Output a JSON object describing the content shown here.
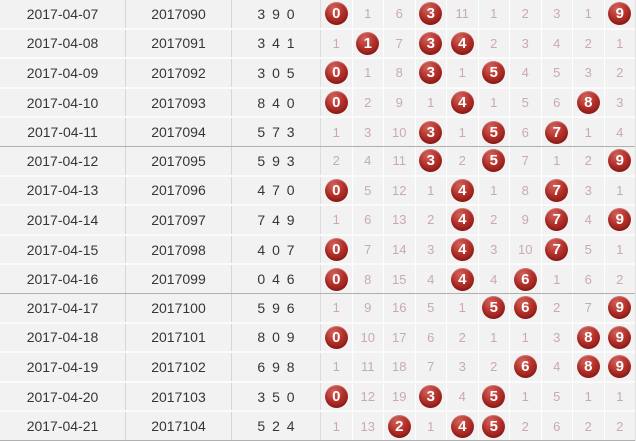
{
  "colors": {
    "ball": "#b22e28",
    "miss_text": "#c9abab",
    "row_text": "#34363b",
    "row_bg": "#f2f2f2",
    "group_border": "#b0b0b0"
  },
  "table": {
    "group_size": 5,
    "digit_columns": [
      0,
      1,
      2,
      3,
      4,
      5,
      6,
      7,
      8,
      9
    ],
    "rows": [
      {
        "date": "2017-04-07",
        "issue": "2017090",
        "numbers": "3 9 0",
        "trend": [
          {
            "ball": 0
          },
          {
            "miss": 1
          },
          {
            "miss": 6
          },
          {
            "ball": 3
          },
          {
            "miss": 11
          },
          {
            "miss": 1
          },
          {
            "miss": 2
          },
          {
            "miss": 3
          },
          {
            "miss": 1
          },
          {
            "ball": 9
          }
        ]
      },
      {
        "date": "2017-04-08",
        "issue": "2017091",
        "numbers": "3 4 1",
        "trend": [
          {
            "miss": 1
          },
          {
            "ball": 1
          },
          {
            "miss": 7
          },
          {
            "ball": 3
          },
          {
            "ball": 4
          },
          {
            "miss": 2
          },
          {
            "miss": 3
          },
          {
            "miss": 4
          },
          {
            "miss": 2
          },
          {
            "miss": 1
          }
        ]
      },
      {
        "date": "2017-04-09",
        "issue": "2017092",
        "numbers": "3 0 5",
        "trend": [
          {
            "ball": 0
          },
          {
            "miss": 1
          },
          {
            "miss": 8
          },
          {
            "ball": 3
          },
          {
            "miss": 1
          },
          {
            "ball": 5
          },
          {
            "miss": 4
          },
          {
            "miss": 5
          },
          {
            "miss": 3
          },
          {
            "miss": 2
          }
        ]
      },
      {
        "date": "2017-04-10",
        "issue": "2017093",
        "numbers": "8 4 0",
        "trend": [
          {
            "ball": 0
          },
          {
            "miss": 2
          },
          {
            "miss": 9
          },
          {
            "miss": 1
          },
          {
            "ball": 4
          },
          {
            "miss": 1
          },
          {
            "miss": 5
          },
          {
            "miss": 6
          },
          {
            "ball": 8
          },
          {
            "miss": 3
          }
        ]
      },
      {
        "date": "2017-04-11",
        "issue": "2017094",
        "numbers": "5 7 3",
        "trend": [
          {
            "miss": 1
          },
          {
            "miss": 3
          },
          {
            "miss": 10
          },
          {
            "ball": 3
          },
          {
            "miss": 1
          },
          {
            "ball": 5
          },
          {
            "miss": 6
          },
          {
            "ball": 7
          },
          {
            "miss": 1
          },
          {
            "miss": 4
          }
        ]
      },
      {
        "date": "2017-04-12",
        "issue": "2017095",
        "numbers": "5 9 3",
        "trend": [
          {
            "miss": 2
          },
          {
            "miss": 4
          },
          {
            "miss": 11
          },
          {
            "ball": 3
          },
          {
            "miss": 2
          },
          {
            "ball": 5
          },
          {
            "miss": 7
          },
          {
            "miss": 1
          },
          {
            "miss": 2
          },
          {
            "ball": 9
          }
        ]
      },
      {
        "date": "2017-04-13",
        "issue": "2017096",
        "numbers": "4 7 0",
        "trend": [
          {
            "ball": 0
          },
          {
            "miss": 5
          },
          {
            "miss": 12
          },
          {
            "miss": 1
          },
          {
            "ball": 4
          },
          {
            "miss": 1
          },
          {
            "miss": 8
          },
          {
            "ball": 7
          },
          {
            "miss": 3
          },
          {
            "miss": 1
          }
        ]
      },
      {
        "date": "2017-04-14",
        "issue": "2017097",
        "numbers": "7 4 9",
        "trend": [
          {
            "miss": 1
          },
          {
            "miss": 6
          },
          {
            "miss": 13
          },
          {
            "miss": 2
          },
          {
            "ball": 4
          },
          {
            "miss": 2
          },
          {
            "miss": 9
          },
          {
            "ball": 7
          },
          {
            "miss": 4
          },
          {
            "ball": 9
          }
        ]
      },
      {
        "date": "2017-04-15",
        "issue": "2017098",
        "numbers": "4 0 7",
        "trend": [
          {
            "ball": 0
          },
          {
            "miss": 7
          },
          {
            "miss": 14
          },
          {
            "miss": 3
          },
          {
            "ball": 4
          },
          {
            "miss": 3
          },
          {
            "miss": 10
          },
          {
            "ball": 7
          },
          {
            "miss": 5
          },
          {
            "miss": 1
          }
        ]
      },
      {
        "date": "2017-04-16",
        "issue": "2017099",
        "numbers": "0 4 6",
        "trend": [
          {
            "ball": 0
          },
          {
            "miss": 8
          },
          {
            "miss": 15
          },
          {
            "miss": 4
          },
          {
            "ball": 4
          },
          {
            "miss": 4
          },
          {
            "ball": 6
          },
          {
            "miss": 1
          },
          {
            "miss": 6
          },
          {
            "miss": 2
          }
        ]
      },
      {
        "date": "2017-04-17",
        "issue": "2017100",
        "numbers": "5 9 6",
        "trend": [
          {
            "miss": 1
          },
          {
            "miss": 9
          },
          {
            "miss": 16
          },
          {
            "miss": 5
          },
          {
            "miss": 1
          },
          {
            "ball": 5
          },
          {
            "ball": 6
          },
          {
            "miss": 2
          },
          {
            "miss": 7
          },
          {
            "ball": 9
          }
        ]
      },
      {
        "date": "2017-04-18",
        "issue": "2017101",
        "numbers": "8 0 9",
        "trend": [
          {
            "ball": 0
          },
          {
            "miss": 10
          },
          {
            "miss": 17
          },
          {
            "miss": 6
          },
          {
            "miss": 2
          },
          {
            "miss": 1
          },
          {
            "miss": 1
          },
          {
            "miss": 3
          },
          {
            "ball": 8
          },
          {
            "ball": 9
          }
        ]
      },
      {
        "date": "2017-04-19",
        "issue": "2017102",
        "numbers": "6 9 8",
        "trend": [
          {
            "miss": 1
          },
          {
            "miss": 11
          },
          {
            "miss": 18
          },
          {
            "miss": 7
          },
          {
            "miss": 3
          },
          {
            "miss": 2
          },
          {
            "ball": 6
          },
          {
            "miss": 4
          },
          {
            "ball": 8
          },
          {
            "ball": 9
          }
        ]
      },
      {
        "date": "2017-04-20",
        "issue": "2017103",
        "numbers": "3 5 0",
        "trend": [
          {
            "ball": 0
          },
          {
            "miss": 12
          },
          {
            "miss": 19
          },
          {
            "ball": 3
          },
          {
            "miss": 4
          },
          {
            "ball": 5
          },
          {
            "miss": 1
          },
          {
            "miss": 5
          },
          {
            "miss": 1
          },
          {
            "miss": 1
          }
        ]
      },
      {
        "date": "2017-04-21",
        "issue": "2017104",
        "numbers": "5 2 4",
        "trend": [
          {
            "miss": 1
          },
          {
            "miss": 13
          },
          {
            "ball": 2
          },
          {
            "miss": 1
          },
          {
            "ball": 4
          },
          {
            "ball": 5
          },
          {
            "miss": 2
          },
          {
            "miss": 6
          },
          {
            "miss": 2
          },
          {
            "miss": 2
          }
        ]
      }
    ]
  }
}
